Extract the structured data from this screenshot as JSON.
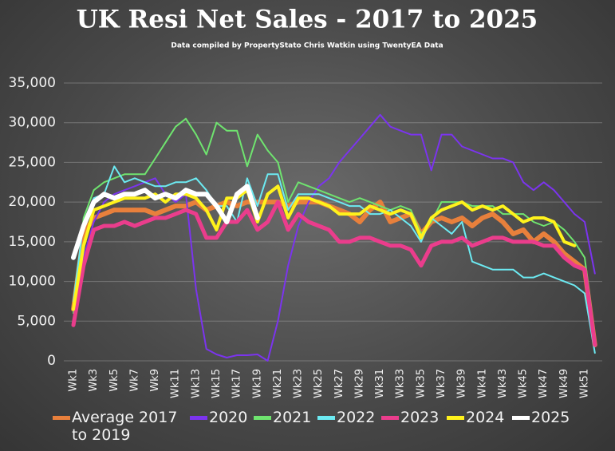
{
  "chart_data": {
    "type": "line",
    "title": "UK  Resi Net Sales - 2017 to 2025",
    "subtitle": "Data compiled by PropertyStato Chris Watkin using TwentyEA Data",
    "categories": [
      "Wk1",
      null,
      "Wk3",
      null,
      "Wk5",
      null,
      "Wk7",
      null,
      "Wk9",
      null,
      "Wk11",
      null,
      "Wk13",
      null,
      "Wk15",
      null,
      "Wk17",
      null,
      "Wk19",
      null,
      "Wk21",
      null,
      "Wk23",
      null,
      "Wk25",
      null,
      "Wk27",
      null,
      "Wk29",
      null,
      "Wk31",
      null,
      "Wk33",
      null,
      "Wk35",
      null,
      "Wk37",
      null,
      "Wk39",
      null,
      "Wk41",
      null,
      "Wk43",
      null,
      "Wk45",
      null,
      "Wk47",
      null,
      "Wk49",
      null,
      "Wk51",
      null
    ],
    "ylim": [
      0,
      35000
    ],
    "yticks": [
      0,
      {
        "value": 5000,
        "label": "5,000"
      },
      {
        "value": 10000,
        "label": "10,000"
      },
      {
        "value": 15000,
        "label": "15,000"
      },
      {
        "value": 20000,
        "label": "20,000"
      },
      {
        "value": 25000,
        "label": "25,000"
      },
      {
        "value": 30000,
        "label": "30,000"
      },
      {
        "value": 35000,
        "label": "35,000"
      }
    ],
    "grid": true,
    "legend": "bottom",
    "series": [
      {
        "name": "Average 2017 to 2019",
        "color": "#e8803c",
        "values": [
          6500,
          16000,
          18000,
          18500,
          19000,
          19000,
          19000,
          19000,
          18500,
          19000,
          19500,
          19500,
          20000,
          19000,
          19500,
          20000,
          19500,
          20000,
          20000,
          20000,
          20000,
          19500,
          20000,
          20000,
          20000,
          19500,
          19000,
          18500,
          17500,
          19000,
          20000,
          17500,
          18000,
          18500,
          16000,
          17500,
          18000,
          17500,
          18000,
          17000,
          18000,
          18500,
          17500,
          16000,
          16500,
          15000,
          16000,
          15000,
          13500,
          12500,
          11500,
          2000
        ]
      },
      {
        "name": "2020",
        "color": "#7b34ee",
        "values": [
          5000,
          13000,
          17500,
          20000,
          21000,
          21500,
          22000,
          22500,
          23000,
          21000,
          20000,
          21000,
          9000,
          1500,
          800,
          400,
          700,
          700,
          800,
          0,
          5000,
          12000,
          17000,
          20000,
          22000,
          23000,
          25000,
          26500,
          28000,
          29500,
          31000,
          29500,
          29000,
          28500,
          28500,
          24000,
          28500,
          28500,
          27000,
          26500,
          26000,
          25500,
          25500,
          25000,
          22500,
          21500,
          22500,
          21500,
          20000,
          18500,
          17500,
          11000
        ]
      },
      {
        "name": "2021",
        "color": "#6fe46f",
        "values": [
          6000,
          18000,
          21500,
          22500,
          23000,
          23500,
          23500,
          23500,
          25500,
          27500,
          29500,
          30500,
          28500,
          26000,
          30000,
          29000,
          29000,
          24500,
          28500,
          26500,
          25000,
          20000,
          22500,
          22000,
          21500,
          21000,
          20500,
          20000,
          20500,
          20000,
          19500,
          19000,
          19500,
          19000,
          16000,
          17500,
          20000,
          20000,
          20000,
          19500,
          19500,
          19500,
          18500,
          18500,
          18500,
          17500,
          17000,
          17500,
          16500,
          15000,
          13000,
          3000
        ]
      },
      {
        "name": "2022",
        "color": "#6ceaf2",
        "values": [
          7500,
          17500,
          20500,
          21000,
          24500,
          22500,
          23000,
          22500,
          22000,
          22000,
          22500,
          22500,
          23000,
          21500,
          19500,
          19500,
          17500,
          23000,
          19500,
          23500,
          23500,
          19000,
          21000,
          21000,
          21000,
          20500,
          20000,
          19500,
          19500,
          18500,
          18500,
          19000,
          18000,
          17000,
          15000,
          18000,
          17000,
          16000,
          17500,
          12500,
          12000,
          11500,
          11500,
          11500,
          10500,
          10500,
          11000,
          10500,
          10000,
          9500,
          8500,
          1000
        ]
      },
      {
        "name": "2023",
        "color": "#ea3d8c",
        "values": [
          4500,
          12000,
          16500,
          17000,
          17000,
          17500,
          17000,
          17500,
          18000,
          18000,
          18500,
          19000,
          18500,
          15500,
          15500,
          17500,
          17500,
          19000,
          16500,
          17500,
          20000,
          16500,
          18500,
          17500,
          17000,
          16500,
          15000,
          15000,
          15500,
          15500,
          15000,
          14500,
          14500,
          14000,
          12000,
          14500,
          15000,
          15000,
          15500,
          14500,
          15000,
          15500,
          15500,
          15000,
          15000,
          15000,
          14500,
          14500,
          13000,
          12000,
          11500,
          2000
        ]
      },
      {
        "name": "2024",
        "color": "#fff21c",
        "values": [
          6500,
          14500,
          19000,
          19500,
          20000,
          20500,
          20500,
          20500,
          21000,
          20000,
          21000,
          21000,
          20500,
          19000,
          16500,
          20500,
          20500,
          21500,
          17500,
          21000,
          22000,
          18000,
          20500,
          20500,
          20000,
          19500,
          18500,
          18500,
          18500,
          19500,
          19000,
          18500,
          19000,
          18500,
          15500,
          18000,
          19000,
          19500,
          20000,
          19000,
          19500,
          19000,
          19500,
          18500,
          17500,
          18000,
          18000,
          17500,
          15000,
          14500,
          null,
          null
        ]
      },
      {
        "name": "2025",
        "color": "#ffffff",
        "values": [
          13000,
          17000,
          20000,
          21000,
          20500,
          21000,
          21000,
          21500,
          20500,
          21000,
          20500,
          21500,
          21000,
          21000,
          19500,
          17500,
          21000,
          22000,
          18000,
          null,
          null,
          null,
          null,
          null,
          null,
          null,
          null,
          null,
          null,
          null,
          null,
          null,
          null,
          null,
          null,
          null,
          null,
          null,
          null,
          null,
          null,
          null,
          null,
          null,
          null,
          null,
          null,
          null,
          null,
          null,
          null,
          null
        ]
      }
    ]
  }
}
